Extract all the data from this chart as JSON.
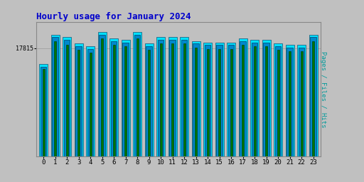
{
  "title": "Hourly usage for January 2024",
  "ylabel": "Pages / Files / Hits",
  "xlabel_values": [
    0,
    1,
    2,
    3,
    4,
    5,
    6,
    7,
    8,
    9,
    10,
    11,
    12,
    13,
    14,
    15,
    16,
    17,
    18,
    19,
    20,
    21,
    22,
    23
  ],
  "ytick_label": "17815",
  "bg_color": "#c0c0c0",
  "plot_bg_color": "#c0c0c0",
  "hits_values": [
    0.72,
    0.95,
    0.93,
    0.88,
    0.86,
    0.97,
    0.92,
    0.91,
    0.97,
    0.88,
    0.93,
    0.93,
    0.93,
    0.9,
    0.89,
    0.89,
    0.89,
    0.92,
    0.91,
    0.91,
    0.88,
    0.87,
    0.87,
    0.95
  ],
  "files_values": [
    0.7,
    0.93,
    0.91,
    0.86,
    0.84,
    0.95,
    0.9,
    0.89,
    0.95,
    0.86,
    0.91,
    0.91,
    0.91,
    0.88,
    0.87,
    0.87,
    0.87,
    0.9,
    0.89,
    0.89,
    0.86,
    0.85,
    0.85,
    0.93
  ],
  "pages_values": [
    0.68,
    0.9,
    0.87,
    0.83,
    0.81,
    0.92,
    0.87,
    0.86,
    0.92,
    0.83,
    0.88,
    0.88,
    0.88,
    0.85,
    0.84,
    0.84,
    0.84,
    0.87,
    0.86,
    0.86,
    0.83,
    0.82,
    0.82,
    0.9
  ],
  "hits_color": "#00e0ff",
  "files_color": "#0088cc",
  "pages_color": "#007700",
  "title_color": "#0000cc",
  "ylabel_color": "#009999",
  "tick_label_color": "#000000",
  "ymax": 1.05,
  "ymin": 0.0,
  "ytick_pos": 0.845
}
